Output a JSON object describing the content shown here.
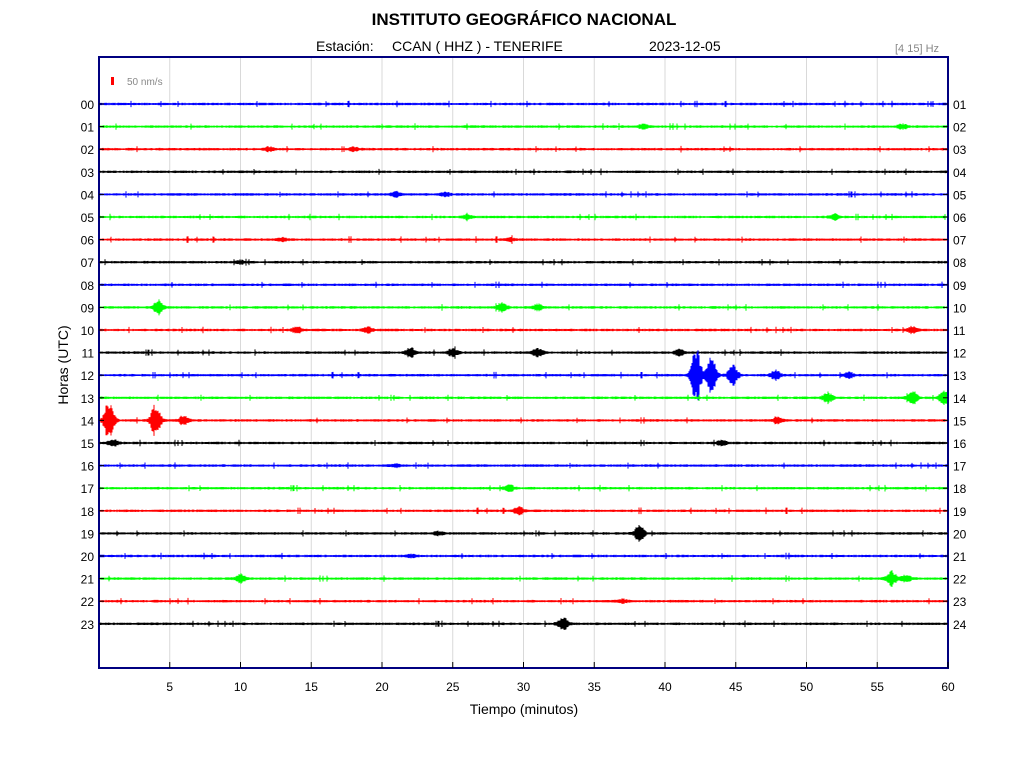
{
  "chart_data": {
    "type": "line",
    "title": "INSTITUTO GEOGRÁFICO NACIONAL",
    "station_label": "Estación:",
    "station": "CCAN ( HHZ ) - TENERIFE",
    "date": "2023-12-05",
    "filter": "[4 15] Hz",
    "scale_label": "50 nm/s",
    "xlabel": "Tiempo (minutos)",
    "ylabel": "Horas (UTC)",
    "xlim": [
      0,
      60
    ],
    "x_ticks": [
      "5",
      "10",
      "15",
      "20",
      "25",
      "30",
      "35",
      "40",
      "45",
      "50",
      "55",
      "60"
    ],
    "x_tick_values": [
      5,
      10,
      15,
      20,
      25,
      30,
      35,
      40,
      45,
      50,
      55,
      60
    ],
    "grid": true,
    "left_tick_labels": [
      "00",
      "01",
      "02",
      "03",
      "04",
      "05",
      "06",
      "07",
      "08",
      "09",
      "10",
      "11",
      "12",
      "13",
      "14",
      "15",
      "16",
      "17",
      "18",
      "19",
      "20",
      "21",
      "22",
      "23"
    ],
    "right_tick_labels": [
      "01",
      "02",
      "03",
      "04",
      "05",
      "06",
      "07",
      "08",
      "09",
      "10",
      "11",
      "12",
      "13",
      "14",
      "15",
      "16",
      "17",
      "18",
      "19",
      "20",
      "21",
      "22",
      "23",
      "24"
    ],
    "colors": {
      "blue": "#0000ff",
      "green": "#00ff00",
      "red": "#ff0000",
      "black": "#000000",
      "frame": "#000080",
      "grid": "#d9d9d9"
    },
    "series": [
      {
        "hour": 0,
        "color": "#0000ff",
        "events": []
      },
      {
        "hour": 1,
        "color": "#00ff00",
        "events": [
          [
            38.5,
            0.25
          ],
          [
            56.8,
            0.3
          ]
        ]
      },
      {
        "hour": 2,
        "color": "#ff0000",
        "events": [
          [
            12.0,
            0.25
          ],
          [
            18.0,
            0.2
          ]
        ]
      },
      {
        "hour": 3,
        "color": "#000000",
        "events": []
      },
      {
        "hour": 4,
        "color": "#0000ff",
        "events": [
          [
            21.0,
            0.3
          ],
          [
            24.5,
            0.2
          ]
        ]
      },
      {
        "hour": 5,
        "color": "#00ff00",
        "events": [
          [
            26.0,
            0.25
          ],
          [
            52.0,
            0.35
          ]
        ]
      },
      {
        "hour": 6,
        "color": "#ff0000",
        "events": [
          [
            13.0,
            0.2
          ],
          [
            29.0,
            0.2
          ]
        ]
      },
      {
        "hour": 7,
        "color": "#000000",
        "events": [
          [
            10.0,
            0.2
          ]
        ]
      },
      {
        "hour": 8,
        "color": "#0000ff",
        "events": []
      },
      {
        "hour": 9,
        "color": "#00ff00",
        "events": [
          [
            4.2,
            0.9
          ],
          [
            28.5,
            0.55
          ],
          [
            31.0,
            0.4
          ]
        ]
      },
      {
        "hour": 10,
        "color": "#ff0000",
        "events": [
          [
            14.0,
            0.4
          ],
          [
            19.0,
            0.35
          ],
          [
            57.5,
            0.4
          ]
        ]
      },
      {
        "hour": 11,
        "color": "#000000",
        "events": [
          [
            22.0,
            0.6
          ],
          [
            25.0,
            0.45
          ],
          [
            31.0,
            0.55
          ],
          [
            41.0,
            0.35
          ]
        ]
      },
      {
        "hour": 12,
        "color": "#0000ff",
        "events": [
          [
            42.2,
            3.5
          ],
          [
            43.3,
            2.4
          ],
          [
            44.8,
            1.4
          ],
          [
            47.8,
            0.6
          ],
          [
            53.0,
            0.35
          ]
        ]
      },
      {
        "hour": 13,
        "color": "#00ff00",
        "events": [
          [
            51.5,
            0.6
          ],
          [
            57.5,
            0.7
          ],
          [
            59.7,
            0.9
          ]
        ]
      },
      {
        "hour": 14,
        "color": "#ff0000",
        "events": [
          [
            0.7,
            2.4
          ],
          [
            4.0,
            2.0
          ],
          [
            6.0,
            0.6
          ],
          [
            48.0,
            0.35
          ]
        ]
      },
      {
        "hour": 15,
        "color": "#000000",
        "events": [
          [
            1.0,
            0.4
          ],
          [
            44.0,
            0.3
          ]
        ]
      },
      {
        "hour": 16,
        "color": "#0000ff",
        "events": [
          [
            21.0,
            0.2
          ]
        ]
      },
      {
        "hour": 17,
        "color": "#00ff00",
        "events": [
          [
            29.0,
            0.4
          ]
        ]
      },
      {
        "hour": 18,
        "color": "#ff0000",
        "events": [
          [
            29.7,
            0.45
          ]
        ]
      },
      {
        "hour": 19,
        "color": "#000000",
        "events": [
          [
            38.2,
            1.0
          ],
          [
            24.0,
            0.2
          ]
        ]
      },
      {
        "hour": 20,
        "color": "#0000ff",
        "events": [
          [
            22.0,
            0.2
          ]
        ]
      },
      {
        "hour": 21,
        "color": "#00ff00",
        "events": [
          [
            10.0,
            0.5
          ],
          [
            56.0,
            0.9
          ],
          [
            57.0,
            0.5
          ]
        ]
      },
      {
        "hour": 22,
        "color": "#ff0000",
        "events": [
          [
            37.0,
            0.2
          ]
        ]
      },
      {
        "hour": 23,
        "color": "#000000",
        "events": [
          [
            32.8,
            0.9
          ]
        ]
      }
    ]
  }
}
